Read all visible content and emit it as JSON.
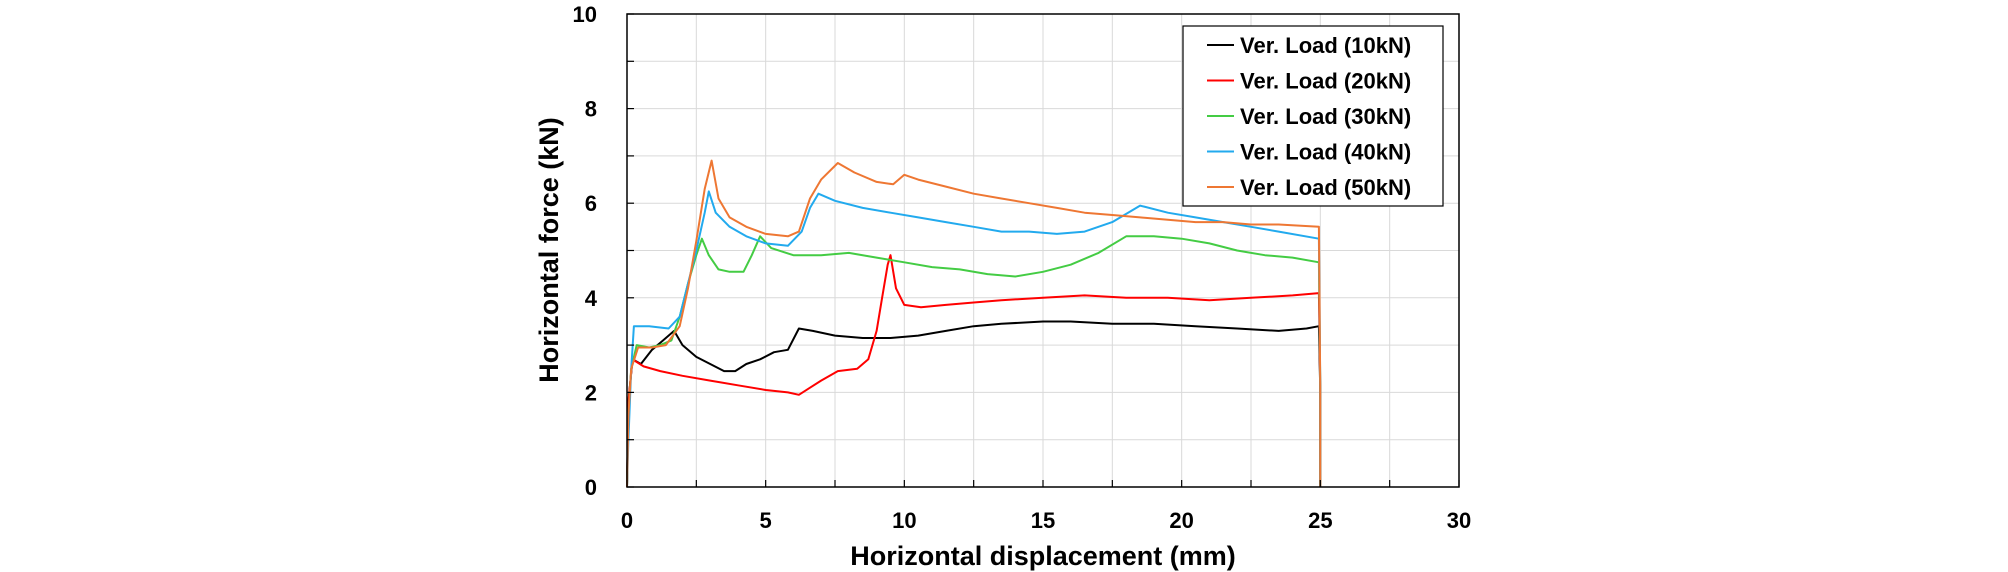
{
  "chart_data": {
    "type": "line",
    "title": "",
    "xlabel": "Horizontal displacement (mm)",
    "ylabel": "Horizontal force (kN)",
    "xlim": [
      0,
      30
    ],
    "ylim": [
      0,
      10
    ],
    "xticks": [
      "0",
      "5",
      "10",
      "15",
      "20",
      "25",
      "30"
    ],
    "yticks": [
      "0",
      "2",
      "4",
      "6",
      "8",
      "10"
    ],
    "grid": true,
    "legend_position": "top-right",
    "series": [
      {
        "name": "Ver. Load (10kN)",
        "color": "#000000",
        "points": [
          [
            0,
            0
          ],
          [
            0.05,
            1.8
          ],
          [
            0.2,
            2.7
          ],
          [
            0.5,
            2.6
          ],
          [
            0.9,
            2.9
          ],
          [
            1.3,
            3.1
          ],
          [
            1.7,
            3.3
          ],
          [
            2.0,
            3.0
          ],
          [
            2.5,
            2.75
          ],
          [
            3.0,
            2.6
          ],
          [
            3.5,
            2.45
          ],
          [
            3.9,
            2.45
          ],
          [
            4.3,
            2.6
          ],
          [
            4.8,
            2.7
          ],
          [
            5.3,
            2.85
          ],
          [
            5.8,
            2.9
          ],
          [
            6.2,
            3.35
          ],
          [
            6.7,
            3.3
          ],
          [
            7.5,
            3.2
          ],
          [
            8.5,
            3.15
          ],
          [
            9.5,
            3.15
          ],
          [
            10.5,
            3.2
          ],
          [
            11.5,
            3.3
          ],
          [
            12.5,
            3.4
          ],
          [
            13.5,
            3.45
          ],
          [
            15.0,
            3.5
          ],
          [
            16.0,
            3.5
          ],
          [
            17.5,
            3.45
          ],
          [
            19.0,
            3.45
          ],
          [
            20.5,
            3.4
          ],
          [
            22.0,
            3.35
          ],
          [
            23.5,
            3.3
          ],
          [
            24.5,
            3.35
          ],
          [
            24.95,
            3.4
          ],
          [
            25.0,
            2.0
          ],
          [
            25.0,
            0
          ]
        ]
      },
      {
        "name": "Ver. Load (20kN)",
        "color": "#ff0000",
        "points": [
          [
            0,
            0
          ],
          [
            0.05,
            1.8
          ],
          [
            0.2,
            2.7
          ],
          [
            0.6,
            2.55
          ],
          [
            1.2,
            2.45
          ],
          [
            2.0,
            2.35
          ],
          [
            3.0,
            2.25
          ],
          [
            4.0,
            2.15
          ],
          [
            5.0,
            2.05
          ],
          [
            5.8,
            2.0
          ],
          [
            6.2,
            1.95
          ],
          [
            6.6,
            2.1
          ],
          [
            7.0,
            2.25
          ],
          [
            7.6,
            2.45
          ],
          [
            8.3,
            2.5
          ],
          [
            8.7,
            2.7
          ],
          [
            9.0,
            3.3
          ],
          [
            9.2,
            4.0
          ],
          [
            9.4,
            4.7
          ],
          [
            9.5,
            4.9
          ],
          [
            9.7,
            4.2
          ],
          [
            10.0,
            3.85
          ],
          [
            10.6,
            3.8
          ],
          [
            11.5,
            3.85
          ],
          [
            12.5,
            3.9
          ],
          [
            13.5,
            3.95
          ],
          [
            15.0,
            4.0
          ],
          [
            16.5,
            4.05
          ],
          [
            18.0,
            4.0
          ],
          [
            19.5,
            4.0
          ],
          [
            21.0,
            3.95
          ],
          [
            22.5,
            4.0
          ],
          [
            24.0,
            4.05
          ],
          [
            24.95,
            4.1
          ],
          [
            25.0,
            2.0
          ],
          [
            25.0,
            0
          ]
        ]
      },
      {
        "name": "Ver. Load (30kN)",
        "color": "#44cc44",
        "points": [
          [
            0,
            0
          ],
          [
            0.05,
            1.5
          ],
          [
            0.15,
            2.5
          ],
          [
            0.35,
            3.0
          ],
          [
            0.8,
            2.95
          ],
          [
            1.2,
            3.0
          ],
          [
            1.6,
            3.1
          ],
          [
            1.9,
            3.6
          ],
          [
            2.2,
            4.3
          ],
          [
            2.5,
            4.9
          ],
          [
            2.7,
            5.25
          ],
          [
            2.95,
            4.9
          ],
          [
            3.3,
            4.6
          ],
          [
            3.7,
            4.55
          ],
          [
            4.2,
            4.55
          ],
          [
            4.5,
            4.9
          ],
          [
            4.8,
            5.3
          ],
          [
            5.2,
            5.05
          ],
          [
            6.0,
            4.9
          ],
          [
            7.0,
            4.9
          ],
          [
            8.0,
            4.95
          ],
          [
            9.0,
            4.85
          ],
          [
            10.0,
            4.75
          ],
          [
            11.0,
            4.65
          ],
          [
            12.0,
            4.6
          ],
          [
            13.0,
            4.5
          ],
          [
            14.0,
            4.45
          ],
          [
            15.0,
            4.55
          ],
          [
            16.0,
            4.7
          ],
          [
            17.0,
            4.95
          ],
          [
            18.0,
            5.3
          ],
          [
            19.0,
            5.3
          ],
          [
            20.0,
            5.25
          ],
          [
            21.0,
            5.15
          ],
          [
            22.0,
            5.0
          ],
          [
            23.0,
            4.9
          ],
          [
            24.0,
            4.85
          ],
          [
            24.95,
            4.75
          ],
          [
            25.0,
            2.0
          ],
          [
            25.0,
            0
          ]
        ]
      },
      {
        "name": "Ver. Load (40kN)",
        "color": "#22aaee",
        "points": [
          [
            0,
            0
          ],
          [
            0.05,
            1.0
          ],
          [
            0.15,
            2.5
          ],
          [
            0.25,
            3.4
          ],
          [
            0.8,
            3.4
          ],
          [
            1.5,
            3.35
          ],
          [
            1.9,
            3.6
          ],
          [
            2.2,
            4.3
          ],
          [
            2.5,
            5.0
          ],
          [
            2.8,
            5.8
          ],
          [
            2.95,
            6.25
          ],
          [
            3.2,
            5.8
          ],
          [
            3.7,
            5.5
          ],
          [
            4.3,
            5.3
          ],
          [
            5.0,
            5.15
          ],
          [
            5.8,
            5.1
          ],
          [
            6.3,
            5.4
          ],
          [
            6.6,
            5.9
          ],
          [
            6.9,
            6.2
          ],
          [
            7.5,
            6.05
          ],
          [
            8.5,
            5.9
          ],
          [
            9.5,
            5.8
          ],
          [
            10.5,
            5.7
          ],
          [
            11.5,
            5.6
          ],
          [
            12.5,
            5.5
          ],
          [
            13.5,
            5.4
          ],
          [
            14.5,
            5.4
          ],
          [
            15.5,
            5.35
          ],
          [
            16.5,
            5.4
          ],
          [
            17.5,
            5.6
          ],
          [
            18.5,
            5.95
          ],
          [
            19.5,
            5.8
          ],
          [
            20.5,
            5.7
          ],
          [
            21.5,
            5.6
          ],
          [
            22.5,
            5.5
          ],
          [
            23.5,
            5.4
          ],
          [
            24.95,
            5.25
          ],
          [
            25.0,
            2.0
          ],
          [
            25.0,
            0
          ]
        ]
      },
      {
        "name": "Ver. Load (50kN)",
        "color": "#ee7733",
        "points": [
          [
            0,
            0
          ],
          [
            0.05,
            1.5
          ],
          [
            0.15,
            2.5
          ],
          [
            0.4,
            2.95
          ],
          [
            0.9,
            2.95
          ],
          [
            1.4,
            3.0
          ],
          [
            1.9,
            3.4
          ],
          [
            2.2,
            4.2
          ],
          [
            2.5,
            5.2
          ],
          [
            2.8,
            6.3
          ],
          [
            3.05,
            6.9
          ],
          [
            3.3,
            6.1
          ],
          [
            3.7,
            5.7
          ],
          [
            4.3,
            5.5
          ],
          [
            5.0,
            5.35
          ],
          [
            5.8,
            5.3
          ],
          [
            6.2,
            5.4
          ],
          [
            6.6,
            6.1
          ],
          [
            7.0,
            6.5
          ],
          [
            7.6,
            6.85
          ],
          [
            8.2,
            6.65
          ],
          [
            9.0,
            6.45
          ],
          [
            9.6,
            6.4
          ],
          [
            10.0,
            6.6
          ],
          [
            10.5,
            6.5
          ],
          [
            11.5,
            6.35
          ],
          [
            12.5,
            6.2
          ],
          [
            13.5,
            6.1
          ],
          [
            14.5,
            6.0
          ],
          [
            15.5,
            5.9
          ],
          [
            16.5,
            5.8
          ],
          [
            17.5,
            5.75
          ],
          [
            18.5,
            5.7
          ],
          [
            19.5,
            5.65
          ],
          [
            20.5,
            5.6
          ],
          [
            21.5,
            5.6
          ],
          [
            22.5,
            5.55
          ],
          [
            23.5,
            5.55
          ],
          [
            24.95,
            5.5
          ],
          [
            25.0,
            2.0
          ],
          [
            25.0,
            0
          ]
        ]
      }
    ]
  }
}
